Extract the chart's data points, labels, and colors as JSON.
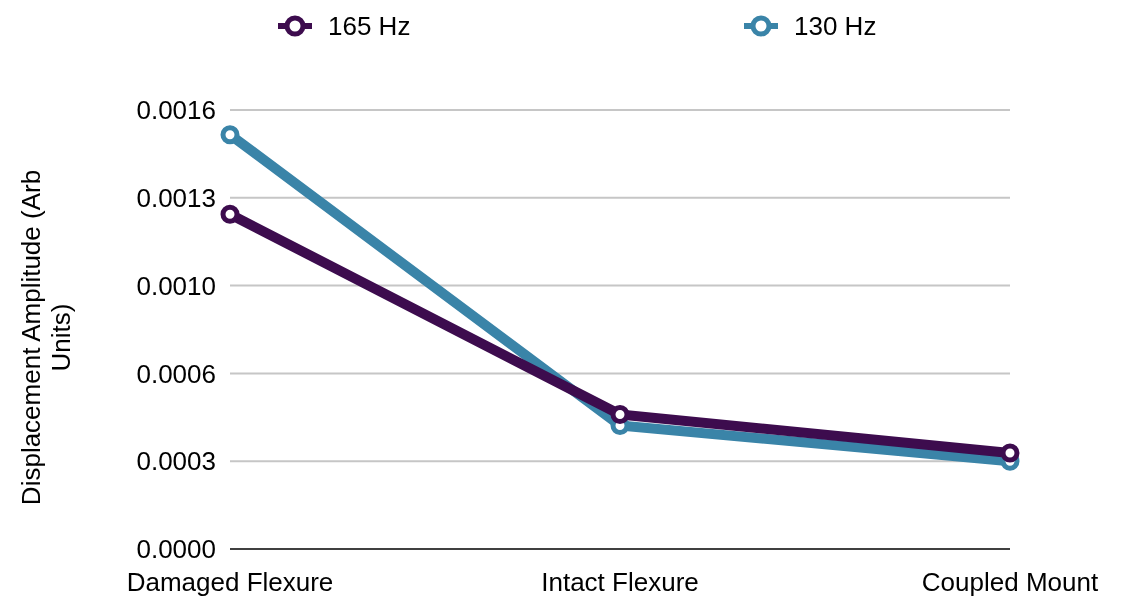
{
  "chart_data": {
    "type": "line",
    "ylabel": "Displacement Amplitude (Arb Units)",
    "categories": [
      "Damaged Flexure",
      "Intact Flexure",
      "Coupled Mount"
    ],
    "series": [
      {
        "name": "165 Hz",
        "color": "#3d0c4e",
        "values": [
          0.00122,
          0.00049,
          0.00035
        ]
      },
      {
        "name": "130 Hz",
        "color": "#3a84a8",
        "values": [
          0.00151,
          0.00045,
          0.00032
        ]
      }
    ],
    "ylim": [
      0,
      0.0016
    ],
    "yticks": [
      {
        "value": 0,
        "label": "0.0000"
      },
      {
        "value": 0.00032,
        "label": "0.0003"
      },
      {
        "value": 0.00064,
        "label": "0.0006"
      },
      {
        "value": 0.00096,
        "label": "0.0010"
      },
      {
        "value": 0.00128,
        "label": "0.0013"
      },
      {
        "value": 0.0016,
        "label": "0.0016"
      }
    ],
    "grid": "y",
    "legend": "top",
    "marker": "circle",
    "line_style": "solid"
  }
}
